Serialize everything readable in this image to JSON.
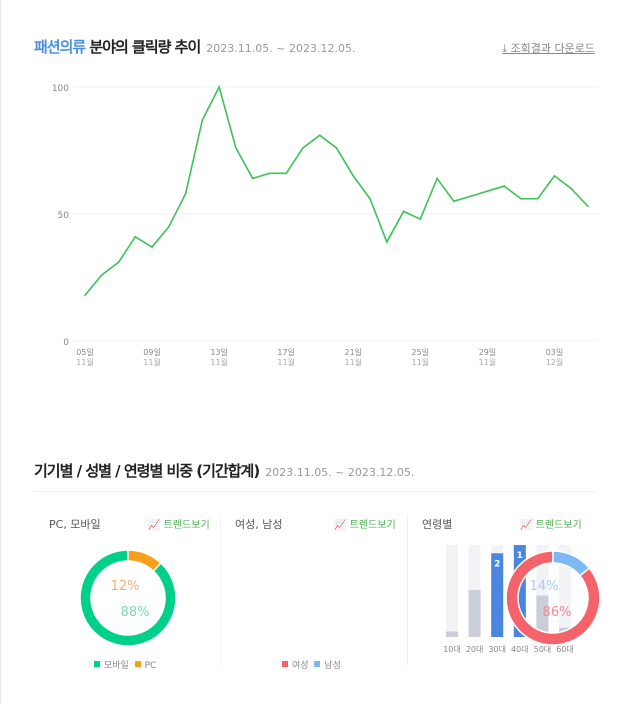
{
  "header": {
    "category": "패션의류",
    "title_rest": " 분야의 클릭량 추이",
    "date_range": "2023.11.05. ~ 2023.12.05.",
    "download_label": "조회결과 다운로드",
    "download_icon": "download-arrow-icon"
  },
  "chart_data": [
    {
      "type": "line",
      "title": "",
      "ylim": [
        0,
        100
      ],
      "yticks": [
        "0",
        "50",
        "100"
      ],
      "grid": true,
      "x": [
        "11.05",
        "11.06",
        "11.07",
        "11.08",
        "11.09",
        "11.10",
        "11.11",
        "11.12",
        "11.13",
        "11.14",
        "11.15",
        "11.16",
        "11.17",
        "11.18",
        "11.19",
        "11.20",
        "11.21",
        "11.22",
        "11.23",
        "11.24",
        "11.25",
        "11.26",
        "11.27",
        "11.28",
        "11.29",
        "11.30",
        "12.01",
        "12.02",
        "12.03",
        "12.04",
        "12.05"
      ],
      "values": [
        18,
        26,
        31,
        41,
        37,
        45,
        58,
        87,
        100,
        76,
        64,
        66,
        66,
        76,
        81,
        76,
        65,
        56,
        39,
        51,
        48,
        64,
        55,
        57,
        59,
        61,
        56,
        56,
        65,
        60,
        53
      ],
      "xtick_labels": [
        {
          "day": "05일",
          "month": "11월"
        },
        {
          "day": "09일",
          "month": "11월"
        },
        {
          "day": "13일",
          "month": "11월"
        },
        {
          "day": "17일",
          "month": "11월"
        },
        {
          "day": "21일",
          "month": "11월"
        },
        {
          "day": "25일",
          "month": "11월"
        },
        {
          "day": "29일",
          "month": "11월"
        },
        {
          "day": "03일",
          "month": "12월"
        }
      ],
      "color": "#3cc257"
    },
    {
      "type": "pie",
      "title": "PC, 모바일",
      "slices": [
        {
          "name": "모바일",
          "value": 88,
          "label": "88%",
          "color": "#00d08a"
        },
        {
          "name": "PC",
          "value": 12,
          "label": "12%",
          "color": "#f59f1b"
        }
      ]
    },
    {
      "type": "pie",
      "title": "여성, 남성",
      "slices": [
        {
          "name": "여성",
          "value": 86,
          "label": "86%",
          "color": "#f5636a"
        },
        {
          "name": "남성",
          "value": 14,
          "label": "14%",
          "color": "#7fb7f5"
        }
      ]
    },
    {
      "type": "bar",
      "title": "연령별",
      "categories": [
        "10대",
        "20대",
        "30대",
        "40대",
        "50대",
        "60대"
      ],
      "values": [
        6,
        51,
        91,
        100,
        45,
        10
      ],
      "ranks": [
        "",
        "",
        "2",
        "1",
        "",
        ""
      ],
      "colors": {
        "top": "#4a86e0",
        "other": "#c9ceda",
        "track": "#f1f3f6"
      }
    }
  ],
  "section2": {
    "title": "기기별 / 성별 / 연령별 비중 (기간합계)",
    "date_range": "2023.11.05. ~ 2023.12.05.",
    "trend_label": "트렌드보기"
  }
}
